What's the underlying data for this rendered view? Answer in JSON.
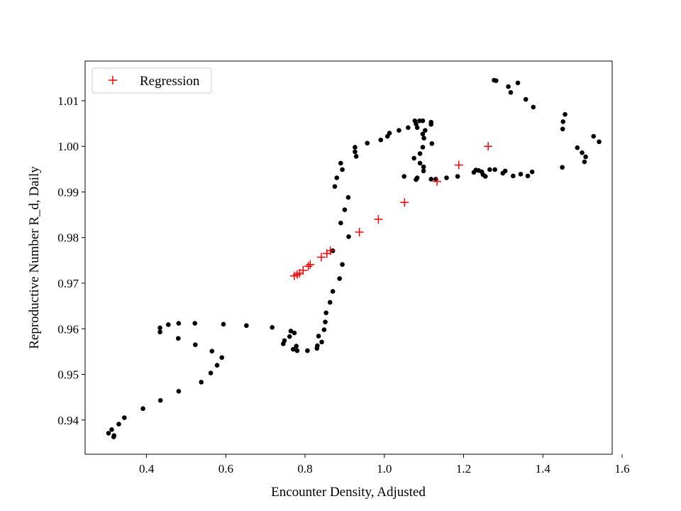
{
  "chart_data": {
    "type": "scatter",
    "title": "",
    "xlabel": "Encounter Density, Adjusted",
    "ylabel": "Reproductive Number R_d, Daily",
    "xlim": [
      0.245,
      1.575
    ],
    "ylim": [
      0.9325,
      1.0187
    ],
    "x_ticks": [
      0.4,
      0.6,
      0.8,
      1.0,
      1.2,
      1.4,
      1.6
    ],
    "x_tick_labels": [
      "0.4",
      "0.6",
      "0.8",
      "1.0",
      "1.2",
      "1.4",
      "1.6"
    ],
    "y_ticks": [
      0.94,
      0.95,
      0.96,
      0.97,
      0.98,
      0.99,
      1.0,
      1.01
    ],
    "y_tick_labels": [
      "0.94",
      "0.95",
      "0.96",
      "0.97",
      "0.98",
      "0.99",
      "1.00",
      "1.01"
    ],
    "grid": false,
    "legend_position": "top-left",
    "series": [
      {
        "marker": "circle",
        "color": "#000000",
        "points": [
          [
            0.304,
            0.9371
          ],
          [
            0.312,
            0.9379
          ],
          [
            0.318,
            0.9366
          ],
          [
            0.317,
            0.9363
          ],
          [
            0.33,
            0.9391
          ],
          [
            0.344,
            0.9405
          ],
          [
            0.391,
            0.9425
          ],
          [
            0.435,
            0.9443
          ],
          [
            0.481,
            0.9463
          ],
          [
            0.538,
            0.9483
          ],
          [
            0.562,
            0.9503
          ],
          [
            0.578,
            0.952
          ],
          [
            0.59,
            0.9537
          ],
          [
            0.565,
            0.9551
          ],
          [
            0.523,
            0.9565
          ],
          [
            0.48,
            0.9579
          ],
          [
            0.434,
            0.9593
          ],
          [
            0.434,
            0.9602
          ],
          [
            0.455,
            0.9609
          ],
          [
            0.481,
            0.9612
          ],
          [
            0.522,
            0.9612
          ],
          [
            0.594,
            0.961
          ],
          [
            0.652,
            0.9607
          ],
          [
            0.717,
            0.9603
          ],
          [
            0.764,
            0.9595
          ],
          [
            0.773,
            0.9591
          ],
          [
            0.761,
            0.9583
          ],
          [
            0.748,
            0.9574
          ],
          [
            0.745,
            0.9567
          ],
          [
            0.778,
            0.9562
          ],
          [
            0.77,
            0.9555
          ],
          [
            0.78,
            0.9552
          ],
          [
            0.806,
            0.9552
          ],
          [
            0.83,
            0.9557
          ],
          [
            0.831,
            0.9563
          ],
          [
            0.842,
            0.9571
          ],
          [
            0.834,
            0.9584
          ],
          [
            0.848,
            0.9598
          ],
          [
            0.851,
            0.9615
          ],
          [
            0.853,
            0.9635
          ],
          [
            0.863,
            0.9658
          ],
          [
            0.87,
            0.9682
          ],
          [
            0.887,
            0.971
          ],
          [
            0.894,
            0.9741
          ],
          [
            0.87,
            0.9771
          ],
          [
            0.91,
            0.9802
          ],
          [
            0.89,
            0.9832
          ],
          [
            0.9,
            0.9861
          ],
          [
            0.909,
            0.9888
          ],
          [
            0.875,
            0.9912
          ],
          [
            0.88,
            0.9931
          ],
          [
            0.894,
            0.9949
          ],
          [
            0.89,
            0.9963
          ],
          [
            0.929,
            0.9978
          ],
          [
            0.926,
            0.9988
          ],
          [
            0.926,
            0.9998
          ],
          [
            0.957,
            1.0007
          ],
          [
            0.991,
            1.0014
          ],
          [
            1.008,
            1.0022
          ],
          [
            1.013,
            1.0029
          ],
          [
            1.037,
            1.0035
          ],
          [
            1.06,
            1.0041
          ],
          [
            1.083,
            1.0041
          ],
          [
            1.08,
            1.0049
          ],
          [
            1.077,
            1.0056
          ],
          [
            1.089,
            1.0056
          ],
          [
            1.097,
            1.0056
          ],
          [
            1.118,
            1.0048
          ],
          [
            1.118,
            1.0053
          ],
          [
            1.103,
            1.0035
          ],
          [
            1.097,
            1.0027
          ],
          [
            1.1,
            1.0018
          ],
          [
            1.12,
            1.0006
          ],
          [
            1.097,
            0.9998
          ],
          [
            1.09,
            0.9984
          ],
          [
            1.075,
            0.9974
          ],
          [
            1.09,
            0.9963
          ],
          [
            1.099,
            0.9955
          ],
          [
            1.099,
            0.9946
          ],
          [
            1.083,
            0.9931
          ],
          [
            1.08,
            0.9927
          ],
          [
            1.05,
            0.9934
          ],
          [
            1.118,
            0.9928
          ],
          [
            1.13,
            0.9928
          ],
          [
            1.157,
            0.9931
          ],
          [
            1.185,
            0.9934
          ],
          [
            1.226,
            0.9943
          ],
          [
            1.231,
            0.9948
          ],
          [
            1.238,
            0.9947
          ],
          [
            1.246,
            0.9944
          ],
          [
            1.249,
            0.9938
          ],
          [
            1.255,
            0.9934
          ],
          [
            1.266,
            0.9949
          ],
          [
            1.279,
            0.9949
          ],
          [
            1.299,
            0.9941
          ],
          [
            1.305,
            0.9946
          ],
          [
            1.325,
            0.9935
          ],
          [
            1.344,
            0.9939
          ],
          [
            1.362,
            0.9935
          ],
          [
            1.373,
            0.9944
          ],
          [
            1.449,
            0.9954
          ],
          [
            1.277,
            1.0145
          ],
          [
            1.282,
            1.0144
          ],
          [
            1.313,
            1.0131
          ],
          [
            1.319,
            1.0118
          ],
          [
            1.337,
            1.0139
          ],
          [
            1.357,
            1.0103
          ],
          [
            1.376,
            1.0086
          ],
          [
            1.456,
            1.007
          ],
          [
            1.451,
            1.0054
          ],
          [
            1.45,
            1.0038
          ],
          [
            1.487,
            0.9997
          ],
          [
            1.499,
            0.9986
          ],
          [
            1.508,
            0.9977
          ],
          [
            1.505,
            0.9966
          ],
          [
            1.528,
            1.0022
          ],
          [
            1.542,
            1.001
          ]
        ]
      },
      {
        "name": "Regression",
        "marker": "plus",
        "color": "#ff0000",
        "points": [
          [
            0.773,
            0.9716
          ],
          [
            0.78,
            0.9719
          ],
          [
            0.786,
            0.9722
          ],
          [
            0.795,
            0.9728
          ],
          [
            0.808,
            0.9737
          ],
          [
            0.813,
            0.9741
          ],
          [
            0.841,
            0.9757
          ],
          [
            0.855,
            0.9765
          ],
          [
            0.864,
            0.9771
          ],
          [
            0.937,
            0.9812
          ],
          [
            0.985,
            0.984
          ],
          [
            1.051,
            0.9877
          ],
          [
            1.133,
            0.9923
          ],
          [
            1.188,
            0.9959
          ],
          [
            1.262,
            1.0
          ]
        ]
      }
    ],
    "legend": [
      {
        "label": "Regression",
        "marker": "plus",
        "color": "#ff0000"
      }
    ]
  }
}
